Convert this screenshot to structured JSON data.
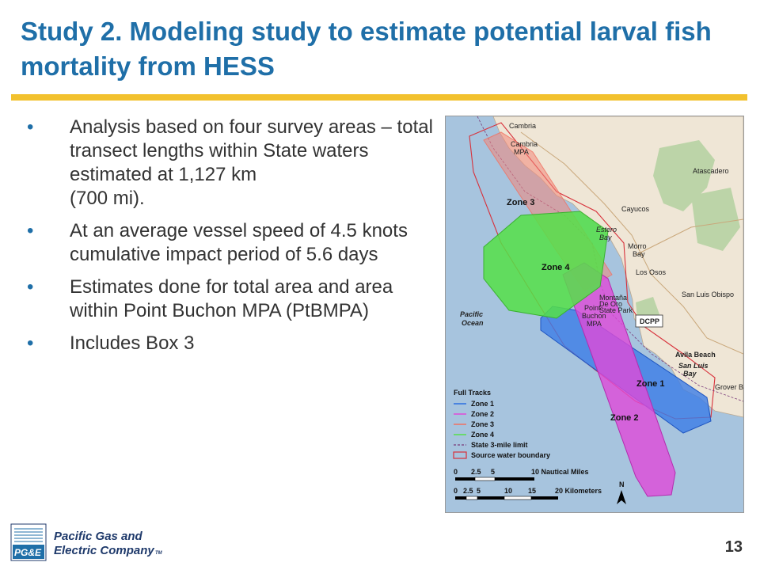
{
  "slide": {
    "title": "Study 2. Modeling study to estimate potential larval fish mortality from HESS",
    "bullets": [
      "Analysis based on four survey areas – total transect lengths within State waters estimated at 1,127 km\n(700 mi).",
      "At an average vessel speed of 4.5 knots cumulative impact period of 5.6 days",
      "Estimates done for total area and area within Point Buchon MPA (PtBMPA)",
      "Includes Box 3"
    ],
    "bullet_symbol": "•",
    "page_number": "13",
    "accent_color": "#f2c12e",
    "title_color": "#1f6fa8"
  },
  "logo": {
    "mark": "PG&E",
    "line1": "Pacific Gas and",
    "line2": "Electric Company",
    "tm": "TM"
  },
  "map": {
    "place_labels": {
      "cambria": "Cambria",
      "cambria_mpa": "Cambria\nMPA",
      "cayucos": "Cayucos",
      "atascadero": "Atascadero",
      "estero_bay": "Estero\nBay",
      "morro_bay": "Morro\nBay",
      "los_osos": "Los Osos",
      "montana_de_oro": "Montaña\nDe Oro\nState Park",
      "san_luis_obispo": "San Luis Obispo",
      "pacific_ocean": "Pacific\nOcean",
      "point_buchon_mpa": "Point\nBuchon\nMPA",
      "dcpp": "DCPP",
      "avila_beach": "Avila Beach",
      "san_luis_bay": "San Luis\nBay",
      "grover_beach": "Grover B"
    },
    "zones": {
      "zone1": "Zone 1",
      "zone2": "Zone 2",
      "zone3": "Zone 3",
      "zone4": "Zone 4"
    },
    "legend": {
      "title": "Full Tracks",
      "items": [
        {
          "label": "Zone 1",
          "color": "#2b6fe0"
        },
        {
          "label": "Zone 2",
          "color": "#e04ad8"
        },
        {
          "label": "Zone 3",
          "color": "#f07060"
        },
        {
          "label": "Zone 4",
          "color": "#55e048"
        },
        {
          "label": "State 3-mile limit",
          "color": "#7a3a7a"
        },
        {
          "label": "Source water boundary",
          "color": "#d8303a"
        }
      ]
    },
    "scale_nm": {
      "ticks": [
        "0",
        "2.5",
        "5",
        "10 Nautical Miles"
      ]
    },
    "scale_km": {
      "ticks": [
        "0",
        "2.5",
        "5",
        "10",
        "15",
        "20 Kilometers"
      ]
    },
    "north": "N",
    "colors": {
      "ocean": "#a7c4de",
      "land": "#efe6d6",
      "park": "#bcd4a8"
    }
  }
}
